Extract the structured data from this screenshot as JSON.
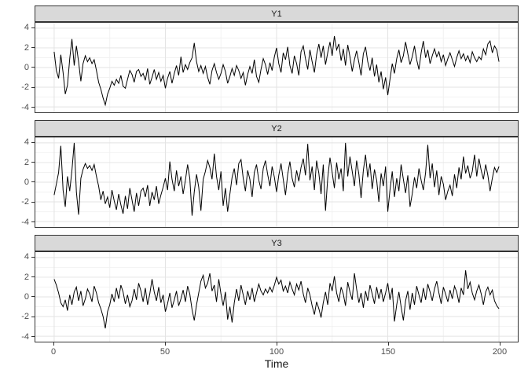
{
  "figure": {
    "xlabel": "Time",
    "x_ticks": [
      0,
      50,
      100,
      150,
      200
    ],
    "x_minor_ticks": [
      25,
      75,
      125,
      175
    ],
    "y_ticks": [
      4,
      2,
      0,
      -2,
      -4
    ],
    "y_minor_ticks": [
      -3,
      -1,
      1,
      3
    ],
    "x_range": [
      0,
      200
    ],
    "y_range": [
      -4,
      4
    ],
    "grid": "on",
    "legend": "none",
    "colors": {
      "strip_bg": "#d9d9d9",
      "border": "#333333",
      "grid_major": "#e3e3e3",
      "grid_minor": "#f2f2f2",
      "series_line": "#000000",
      "axis_text": "#4d4d4d",
      "label_text": "#1a1a1a",
      "panel_bg": "#ffffff"
    }
  },
  "chart_data": [
    {
      "type": "line",
      "title": "Y1",
      "x_start": 0,
      "x_step": 1,
      "values": [
        1.6,
        -0.3,
        -1.1,
        1.3,
        -0.5,
        -2.7,
        -1.8,
        0.9,
        2.9,
        0.2,
        2.2,
        0.6,
        -1.4,
        0.4,
        1.2,
        0.6,
        1.0,
        0.4,
        0.8,
        -0.3,
        -1.5,
        -2.2,
        -3.1,
        -3.8,
        -2.7,
        -2.1,
        -1.4,
        -1.8,
        -1.2,
        -1.6,
        -0.8,
        -1.9,
        -2.1,
        -1.2,
        -0.3,
        -0.7,
        -1.5,
        -0.4,
        -0.2,
        -0.9,
        -0.6,
        -1.3,
        -0.1,
        -1.7,
        -1.0,
        -0.2,
        -1.2,
        -0.5,
        -1.4,
        -0.8,
        -2.1,
        -1.1,
        -0.4,
        -1.6,
        -0.6,
        0.2,
        -0.8,
        1.1,
        -0.5,
        0.3,
        -0.2,
        0.5,
        1.0,
        2.5,
        0.6,
        -0.4,
        0.2,
        -0.6,
        0.1,
        -1.0,
        -1.7,
        -0.3,
        0.4,
        -0.5,
        -1.2,
        -0.6,
        0.3,
        -0.4,
        -1.6,
        -0.9,
        -0.1,
        -0.8,
        0.2,
        -0.3,
        -1.1,
        -0.5,
        -1.8,
        -0.7,
        0.1,
        -0.6,
        0.8,
        -0.9,
        -1.5,
        -0.2,
        0.9,
        0.3,
        -0.7,
        0.5,
        -0.3,
        1.1,
        2.0,
        0.4,
        -0.5,
        1.5,
        0.8,
        2.1,
        0.2,
        -0.6,
        1.2,
        0.4,
        -0.8,
        1.6,
        2.2,
        0.9,
        -0.2,
        1.8,
        0.6,
        -0.5,
        1.3,
        2.4,
        1.0,
        2.2,
        0.3,
        1.5,
        2.6,
        1.2,
        3.2,
        1.8,
        2.4,
        0.7,
        1.9,
        0.2,
        2.3,
        1.1,
        -0.4,
        0.8,
        1.7,
        0.5,
        -0.8,
        1.4,
        2.1,
        0.6,
        -0.3,
        1.0,
        -0.9,
        0.3,
        -1.5,
        -0.4,
        -2.2,
        -1.0,
        -2.8,
        -1.2,
        0.4,
        -0.6,
        0.9,
        1.8,
        0.5,
        1.2,
        2.6,
        1.4,
        0.3,
        1.1,
        2.2,
        0.8,
        -0.2,
        1.5,
        2.7,
        1.0,
        1.8,
        0.4,
        1.2,
        1.9,
        1.1,
        1.6,
        0.6,
        1.3,
        0.2,
        0.9,
        1.5,
        0.8,
        0.1,
        1.0,
        1.7,
        0.9,
        1.4,
        0.7,
        1.2,
        0.5,
        1.6,
        1.0,
        0.6,
        1.1,
        0.8,
        1.9,
        1.3,
        2.4,
        2.7,
        1.5,
        2.2,
        1.8,
        0.6
      ]
    },
    {
      "type": "line",
      "title": "Y2",
      "x_start": 0,
      "x_step": 1,
      "values": [
        -1.3,
        -0.2,
        1.0,
        3.7,
        -0.8,
        -2.5,
        0.6,
        -0.9,
        1.2,
        4.0,
        -1.0,
        -3.3,
        0.4,
        1.3,
        1.9,
        1.4,
        1.7,
        1.2,
        1.8,
        0.6,
        -0.4,
        -1.8,
        -0.9,
        -2.2,
        -1.5,
        -2.6,
        -0.8,
        -1.9,
        -2.8,
        -1.2,
        -2.3,
        -3.2,
        -1.4,
        -2.7,
        -0.6,
        -1.8,
        -3.0,
        -1.1,
        -2.4,
        -0.9,
        -0.6,
        -1.5,
        -0.3,
        -2.4,
        -1.0,
        -1.8,
        -0.4,
        -2.2,
        -1.3,
        -0.5,
        0.4,
        -0.8,
        2.1,
        0.3,
        -0.9,
        1.2,
        -0.4,
        0.6,
        -1.2,
        0.2,
        1.8,
        0.4,
        -3.4,
        -1.0,
        0.8,
        -0.5,
        -2.9,
        0.3,
        1.1,
        2.2,
        1.5,
        0.3,
        2.9,
        0.6,
        -0.8,
        1.1,
        -2.4,
        -0.6,
        -3.0,
        -1.2,
        0.5,
        1.4,
        -0.3,
        1.9,
        2.3,
        0.4,
        -0.9,
        1.2,
        0.3,
        -1.5,
        1.0,
        1.8,
        0.2,
        -0.7,
        1.4,
        2.2,
        0.8,
        -0.4,
        1.6,
        0.5,
        -1.0,
        0.7,
        1.9,
        0.3,
        -1.3,
        0.8,
        2.1,
        0.4,
        -0.5,
        1.2,
        0.1,
        1.5,
        2.4,
        0.7,
        3.9,
        0.2,
        1.6,
        -0.8,
        2.2,
        0.9,
        -1.2,
        1.8,
        -2.9,
        0.4,
        2.5,
        1.0,
        -0.6,
        2.0,
        0.3,
        1.4,
        -0.9,
        4.0,
        0.6,
        2.6,
        1.1,
        -0.4,
        2.2,
        0.8,
        -1.6,
        1.2,
        2.8,
        0.5,
        1.9,
        -0.7,
        1.3,
        0.2,
        -2.0,
        0.9,
        -0.4,
        1.6,
        -3.0,
        -0.8,
        1.1,
        -1.5,
        0.4,
        -0.9,
        1.8,
        0.3,
        -1.1,
        0.7,
        -2.5,
        -1.2,
        0.5,
        -0.6,
        1.4,
        0.2,
        -0.8,
        1.0,
        3.8,
        0.4,
        1.9,
        -0.5,
        1.2,
        -1.3,
        0.6,
        -0.2,
        -1.8,
        -0.9,
        -0.3,
        -1.4,
        0.8,
        -0.6,
        1.5,
        0.3,
        2.6,
        0.9,
        1.7,
        0.4,
        1.1,
        2.8,
        0.6,
        2.4,
        1.2,
        0.3,
        1.8,
        0.7,
        -0.9,
        0.4,
        1.5,
        1.0,
        1.6
      ]
    },
    {
      "type": "line",
      "title": "Y3",
      "x_start": 0,
      "x_step": 1,
      "values": [
        1.8,
        1.2,
        0.4,
        -0.6,
        -1.0,
        -0.3,
        -1.4,
        0.2,
        -0.8,
        0.5,
        1.0,
        -0.4,
        0.6,
        -0.9,
        -0.2,
        0.8,
        0.3,
        -0.5,
        1.1,
        0.4,
        -0.6,
        -1.2,
        -2.0,
        -3.2,
        -1.5,
        -0.8,
        0.3,
        -0.5,
        0.9,
        -0.2,
        1.2,
        0.5,
        -0.7,
        0.2,
        -1.0,
        -0.4,
        0.8,
        -0.3,
        1.4,
        0.6,
        -0.5,
        0.9,
        -0.8,
        0.3,
        1.8,
        0.5,
        -0.4,
        1.0,
        -0.6,
        0.2,
        -1.5,
        -0.7,
        0.4,
        -1.1,
        -0.3,
        0.6,
        -0.9,
        -0.2,
        0.7,
        -0.5,
        1.1,
        0.3,
        -1.3,
        -2.4,
        -0.8,
        0.4,
        1.6,
        2.2,
        0.9,
        1.4,
        2.4,
        0.6,
        1.2,
        -0.5,
        1.8,
        0.3,
        -0.9,
        0.5,
        -2.3,
        -1.0,
        -2.6,
        -0.6,
        0.8,
        -0.4,
        1.2,
        0.2,
        -0.8,
        0.6,
        -0.3,
        0.9,
        -0.5,
        0.4,
        1.3,
        0.6,
        0.2,
        0.8,
        0.4,
        1.0,
        0.5,
        1.2,
        2.0,
        1.3,
        1.7,
        0.6,
        1.1,
        0.4,
        1.5,
        0.8,
        0.2,
        1.3,
        0.7,
        1.6,
        0.3,
        -0.6,
        0.9,
        0.2,
        -0.9,
        -1.8,
        -0.5,
        -1.2,
        -2.1,
        -0.6,
        0.5,
        -0.8,
        1.4,
        0.6,
        2.1,
        0.4,
        -0.5,
        1.0,
        0.3,
        -0.9,
        1.5,
        0.5,
        -0.3,
        2.4,
        0.8,
        -0.6,
        0.4,
        -1.1,
        0.6,
        -0.4,
        1.2,
        0.3,
        -0.7,
        1.0,
        -0.2,
        0.8,
        -0.5,
        0.4,
        1.4,
        -0.3,
        0.9,
        -2.5,
        -0.8,
        0.5,
        -1.0,
        -2.4,
        -0.4,
        0.6,
        -1.3,
        0.4,
        -0.8,
        1.1,
        0.2,
        -0.6,
        0.9,
        -0.3,
        1.3,
        0.5,
        -0.4,
        0.8,
        1.6,
        0.4,
        -0.7,
        1.0,
        0.3,
        -0.5,
        0.7,
        -0.2,
        1.1,
        0.5,
        -0.6,
        0.9,
        0.2,
        2.7,
        0.8,
        1.5,
        0.4,
        -0.3,
        0.6,
        1.2,
        0.3,
        -0.8,
        0.5,
        1.0,
        0.2,
        0.7,
        -0.4,
        -0.9,
        -1.2
      ]
    }
  ]
}
